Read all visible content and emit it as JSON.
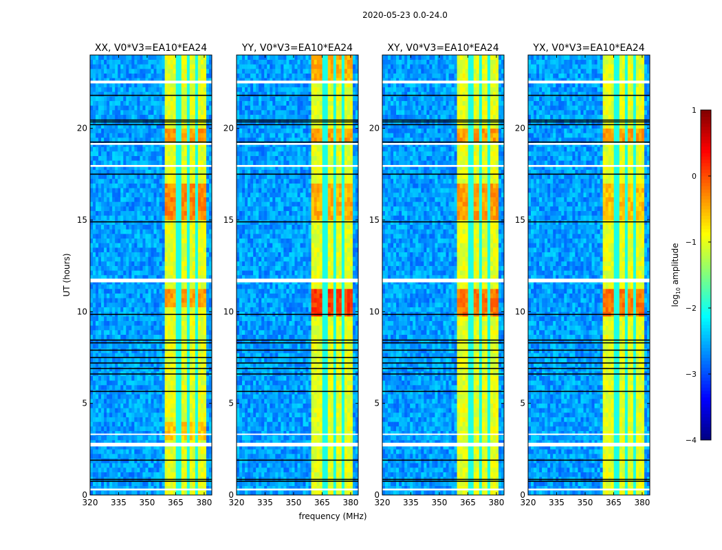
{
  "chart_data": {
    "type": "heatmap",
    "title": "2020-05-23 0.0-24.0",
    "xlabel": "frequency (MHz)",
    "ylabel": "UT (hours)",
    "xlim": [
      320,
      384
    ],
    "ylim": [
      0,
      24
    ],
    "xticks": [
      320,
      335,
      350,
      365,
      380
    ],
    "yticks": [
      0,
      5,
      10,
      15,
      20
    ],
    "panels": [
      {
        "title": "XX, V0*V3=EA10*EA24",
        "hot": [
          [
            15.0,
            17.0,
            -0.3
          ],
          [
            10.3,
            11.3,
            -0.4
          ],
          [
            19.3,
            20.0,
            -0.4
          ],
          [
            3.0,
            4.0,
            -0.6
          ]
        ]
      },
      {
        "title": "YY, V0*V3=EA10*EA24",
        "hot": [
          [
            9.8,
            11.3,
            0.1
          ],
          [
            15.0,
            17.0,
            -0.5
          ],
          [
            19.3,
            20.0,
            -0.4
          ],
          [
            22.5,
            24.0,
            -0.5
          ]
        ]
      },
      {
        "title": "XY, V0*V3=EA10*EA24",
        "hot": [
          [
            9.8,
            11.3,
            -0.2
          ],
          [
            15.0,
            17.0,
            -0.4
          ],
          [
            19.3,
            20.0,
            -0.4
          ]
        ]
      },
      {
        "title": "YX, V0*V3=EA10*EA24",
        "hot": [
          [
            9.8,
            11.3,
            -0.2
          ],
          [
            15.0,
            17.0,
            -0.6
          ],
          [
            19.3,
            20.0,
            -0.4
          ]
        ]
      }
    ],
    "background_level": -2.6,
    "band": {
      "range": [
        360,
        381
      ],
      "level": -1.0,
      "gaps": [
        366.5,
        371.5,
        376.5
      ]
    },
    "flagged_white_hours": [
      [
        0.25,
        0.35
      ],
      [
        2.65,
        2.85
      ],
      [
        11.6,
        11.8
      ],
      [
        19.1,
        19.2
      ],
      [
        22.45,
        22.6
      ],
      [
        3.3,
        3.35
      ],
      [
        17.9,
        18.0
      ]
    ],
    "flagged_black_hours": [
      0.75,
      0.85,
      1.9,
      5.65,
      6.6,
      6.9,
      7.2,
      7.5,
      7.9,
      8.3,
      8.45,
      9.85,
      14.9,
      17.5,
      19.25,
      20.2,
      20.35,
      20.45,
      21.8
    ],
    "colorbar": {
      "label": "log10 amplitude",
      "clim": [
        -4,
        1
      ],
      "ticks": [
        1,
        0,
        -1,
        -2,
        -3,
        -4
      ],
      "tick_labels": [
        "1",
        "0",
        "−1",
        "−2",
        "−3",
        "−4"
      ]
    }
  }
}
